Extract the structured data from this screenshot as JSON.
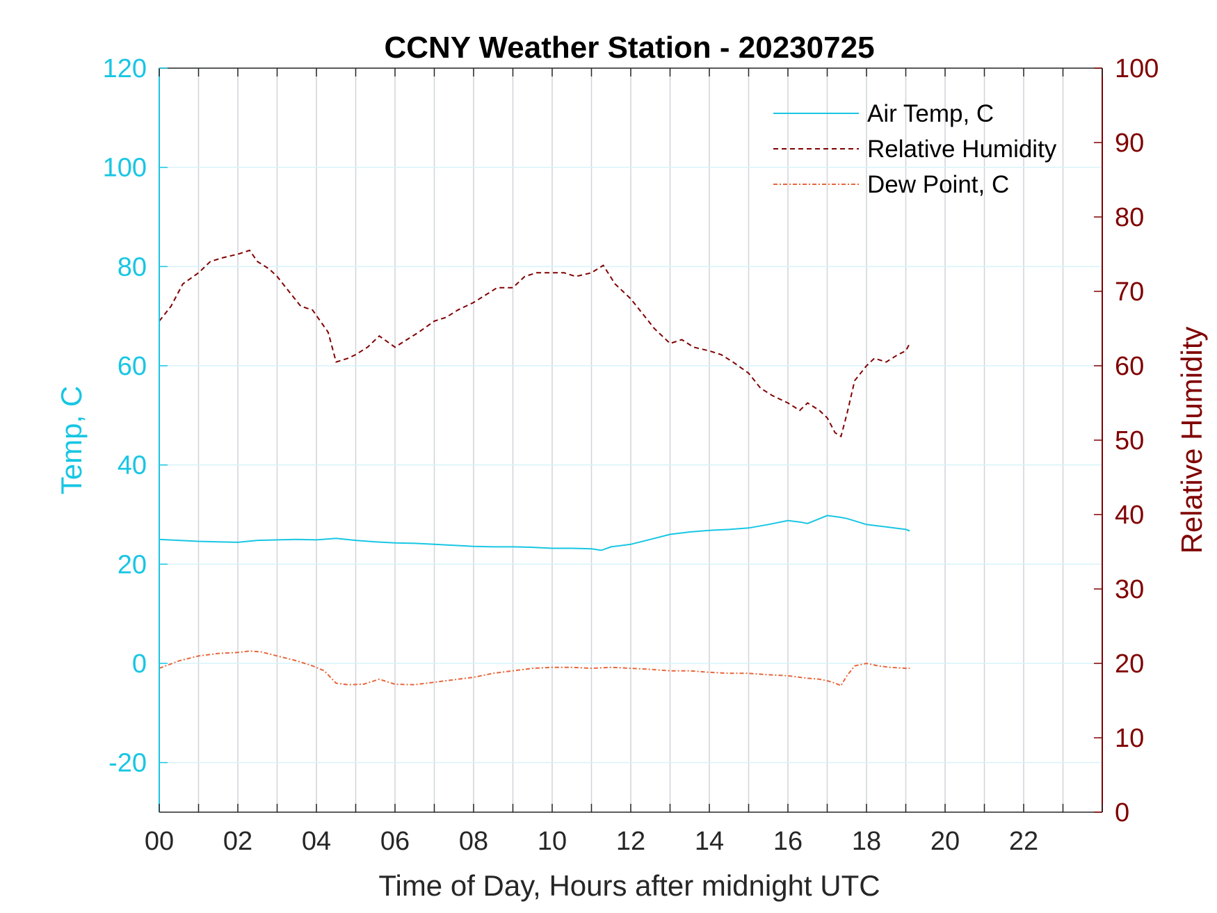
{
  "chart_data": {
    "type": "line",
    "title": "CCNY Weather Station - 20230725",
    "xlabel": "Time of Day, Hours after midnight UTC",
    "ylabel_left": "Temp, C",
    "ylabel_right": "Relative Humidity",
    "xlim": [
      0,
      24
    ],
    "ylim_left": [
      -30,
      120
    ],
    "ylim_right": [
      0,
      100
    ],
    "x_ticks": [
      0,
      2,
      4,
      6,
      8,
      10,
      12,
      14,
      16,
      18,
      20,
      22
    ],
    "x_tick_labels": [
      "00",
      "02",
      "04",
      "06",
      "08",
      "10",
      "12",
      "14",
      "16",
      "18",
      "20",
      "22"
    ],
    "y_ticks_left": [
      -20,
      0,
      20,
      40,
      60,
      80,
      100,
      120
    ],
    "y_tick_labels_left": [
      "-20",
      "0",
      "20",
      "40",
      "60",
      "80",
      "100",
      "120"
    ],
    "y_ticks_right": [
      0,
      10,
      20,
      30,
      40,
      50,
      60,
      70,
      80,
      90,
      100
    ],
    "y_tick_labels_right": [
      "0",
      "10",
      "20",
      "30",
      "40",
      "50",
      "60",
      "70",
      "80",
      "90",
      "100"
    ],
    "grid": true,
    "legend_position": "top-right",
    "colors": {
      "left_axis": "#17c6e3",
      "right_axis": "#800000",
      "air_temp": "#17c6e3",
      "humidity": "#800000",
      "dew_point": "#e8653a",
      "grid_x": "#d0d4da",
      "grid_y": "#d6f3fa"
    },
    "series": [
      {
        "name": "Air Temp, C",
        "axis": "left",
        "style": "solid",
        "x": [
          0,
          0.5,
          1,
          1.5,
          2,
          2.5,
          3,
          3.5,
          4,
          4.5,
          5,
          5.5,
          6,
          6.5,
          7,
          7.5,
          8,
          8.5,
          9,
          9.5,
          10,
          10.5,
          11,
          11.25,
          11.5,
          12,
          12.5,
          13,
          13.5,
          14,
          14.5,
          15,
          15.5,
          16,
          16.3,
          16.5,
          17,
          17.3,
          17.5,
          18,
          18.5,
          19,
          19.1
        ],
        "y": [
          25,
          24.8,
          24.6,
          24.5,
          24.4,
          24.8,
          24.9,
          25,
          24.9,
          25.2,
          24.8,
          24.5,
          24.3,
          24.2,
          24,
          23.8,
          23.6,
          23.5,
          23.5,
          23.4,
          23.2,
          23.2,
          23.1,
          22.8,
          23.5,
          24,
          25,
          26,
          26.5,
          26.8,
          27,
          27.3,
          28,
          28.8,
          28.5,
          28.2,
          29.8,
          29.5,
          29.2,
          28,
          27.5,
          27,
          26.7
        ]
      },
      {
        "name": "Relative Humidity",
        "axis": "right",
        "style": "dashed",
        "x": [
          0,
          0.3,
          0.6,
          1,
          1.3,
          1.6,
          2,
          2.3,
          2.5,
          2.8,
          3,
          3.3,
          3.6,
          3.9,
          4.1,
          4.3,
          4.5,
          4.8,
          5,
          5.3,
          5.6,
          6,
          6.3,
          6.6,
          7,
          7.3,
          7.6,
          8,
          8.3,
          8.6,
          9,
          9.3,
          9.6,
          10,
          10.3,
          10.6,
          11,
          11.3,
          11.6,
          12,
          12.3,
          12.6,
          13,
          13.3,
          13.6,
          14,
          14.3,
          14.6,
          15,
          15.3,
          15.6,
          16,
          16.3,
          16.5,
          16.8,
          17,
          17.2,
          17.35,
          17.5,
          17.7,
          18,
          18.2,
          18.5,
          18.8,
          19,
          19.1
        ],
        "y": [
          66,
          68,
          71,
          72.5,
          74,
          74.5,
          75,
          75.5,
          74,
          73,
          72,
          70,
          68,
          67.5,
          66,
          64.5,
          60.5,
          61,
          61.5,
          62.5,
          64,
          62.5,
          63.5,
          64.5,
          66,
          66.5,
          67.5,
          68.5,
          69.5,
          70.5,
          70.5,
          72,
          72.5,
          72.5,
          72.5,
          72,
          72.5,
          73.5,
          71,
          69,
          67,
          65,
          63,
          63.5,
          62.5,
          62,
          61.5,
          60.5,
          59,
          57,
          56,
          55,
          54,
          55,
          54,
          53,
          51,
          50.5,
          53.5,
          58,
          60,
          61,
          60.5,
          61.5,
          62,
          63
        ]
      },
      {
        "name": "Dew Point, C",
        "axis": "left",
        "style": "dash-dot",
        "x": [
          0,
          0.5,
          1,
          1.5,
          2,
          2.3,
          2.6,
          3,
          3.5,
          3.9,
          4.2,
          4.5,
          4.8,
          5.2,
          5.6,
          6,
          6.5,
          7,
          7.5,
          8,
          8.5,
          9,
          9.5,
          10,
          10.5,
          11,
          11.5,
          12,
          12.5,
          13,
          13.5,
          14,
          14.5,
          15,
          15.5,
          16,
          16.5,
          16.8,
          17,
          17.2,
          17.35,
          17.5,
          17.7,
          18,
          18.3,
          18.6,
          19,
          19.1
        ],
        "y": [
          -1,
          0.5,
          1.5,
          2,
          2.2,
          2.5,
          2.3,
          1.5,
          0.5,
          -0.5,
          -1.5,
          -4,
          -4.3,
          -4.2,
          -3.2,
          -4.2,
          -4.3,
          -3.8,
          -3.3,
          -2.8,
          -2,
          -1.5,
          -1,
          -0.8,
          -0.8,
          -1,
          -0.8,
          -1,
          -1.2,
          -1.5,
          -1.5,
          -1.8,
          -2,
          -2,
          -2.3,
          -2.5,
          -3,
          -3.2,
          -3.5,
          -4,
          -4.5,
          -2.5,
          -0.5,
          0,
          -0.5,
          -0.8,
          -1,
          -1
        ]
      }
    ]
  }
}
